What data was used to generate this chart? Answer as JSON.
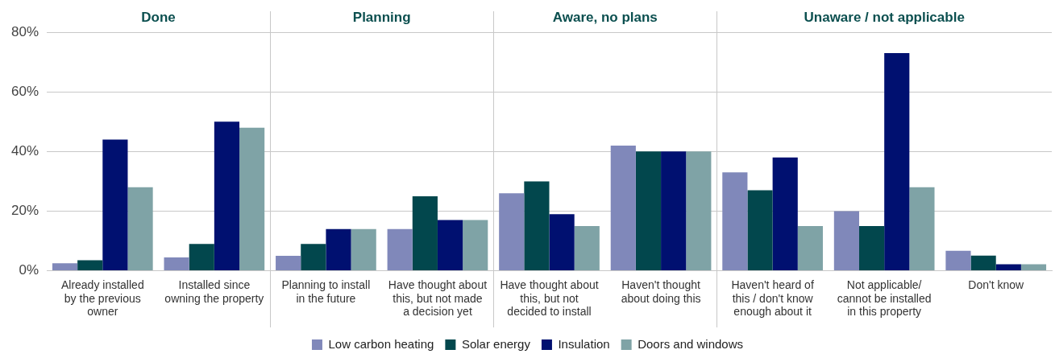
{
  "chart_data": {
    "type": "bar",
    "categories": [
      "Already installed by the previous owner",
      "Installed since owning the property",
      "Planning to install in the future",
      "Have thought about this, but not made a decision yet",
      "Have thought about this, but not decided to install",
      "Haven't thought about doing this",
      "Haven't heard of this / don't know enough about it",
      "Not applicable/ cannot be installed in this property",
      "Don't know"
    ],
    "series": [
      {
        "name": "Low carbon heating",
        "color": "#8088ba",
        "values": [
          2.5,
          4.5,
          5,
          14,
          26,
          42,
          33,
          20,
          6.7
        ]
      },
      {
        "name": "Solar energy",
        "color": "#02474d",
        "values": [
          3.5,
          9,
          9,
          25,
          30,
          40,
          27,
          15,
          5.1
        ]
      },
      {
        "name": "Insulation",
        "color": "#001070",
        "values": [
          44,
          50,
          14,
          17,
          19,
          40,
          38,
          73,
          2.2
        ]
      },
      {
        "name": "Doors and windows",
        "color": "#7fa3a6",
        "values": [
          28,
          48,
          14,
          17,
          15,
          40,
          15,
          28,
          2.2
        ]
      }
    ],
    "annotations": [
      "Done",
      "Planning",
      "Aware, no plans",
      "Unaware / not applicable"
    ],
    "ylim": [
      0,
      80
    ],
    "yticks": [
      {
        "value": 0,
        "label": "0%"
      },
      {
        "value": 20,
        "label": "20%"
      },
      {
        "value": 40,
        "label": "40%"
      },
      {
        "value": 60,
        "label": "60%"
      },
      {
        "value": 80,
        "label": "80%"
      }
    ],
    "grid": "y",
    "legend": "bottom"
  }
}
